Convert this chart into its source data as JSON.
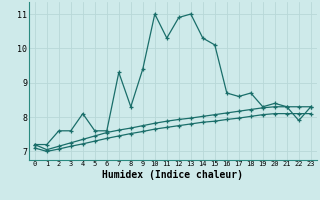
{
  "xlabel": "Humidex (Indice chaleur)",
  "xlim": [
    -0.5,
    23.5
  ],
  "ylim": [
    6.75,
    11.35
  ],
  "yticks": [
    7,
    8,
    9,
    10,
    11
  ],
  "xticks": [
    0,
    1,
    2,
    3,
    4,
    5,
    6,
    7,
    8,
    9,
    10,
    11,
    12,
    13,
    14,
    15,
    16,
    17,
    18,
    19,
    20,
    21,
    22,
    23
  ],
  "bg_color": "#ceeaea",
  "grid_color": "#b8d8d8",
  "line_color": "#1a6e6a",
  "border_color": "#2a8a80",
  "line1_y": [
    7.2,
    7.2,
    7.6,
    7.6,
    8.1,
    7.6,
    7.6,
    9.3,
    8.3,
    9.4,
    11.0,
    10.3,
    10.9,
    11.0,
    10.3,
    10.1,
    8.7,
    8.6,
    8.7,
    8.3,
    8.4,
    8.3,
    7.9,
    8.3
  ],
  "line2_y": [
    7.2,
    7.05,
    7.15,
    7.25,
    7.35,
    7.45,
    7.55,
    7.62,
    7.68,
    7.75,
    7.82,
    7.88,
    7.93,
    7.97,
    8.02,
    8.07,
    8.12,
    8.17,
    8.22,
    8.27,
    8.3,
    8.3,
    8.3,
    8.3
  ],
  "line3_y": [
    7.1,
    7.0,
    7.07,
    7.15,
    7.22,
    7.3,
    7.38,
    7.45,
    7.52,
    7.58,
    7.65,
    7.7,
    7.75,
    7.8,
    7.85,
    7.88,
    7.93,
    7.97,
    8.02,
    8.07,
    8.1,
    8.1,
    8.1,
    8.1
  ]
}
